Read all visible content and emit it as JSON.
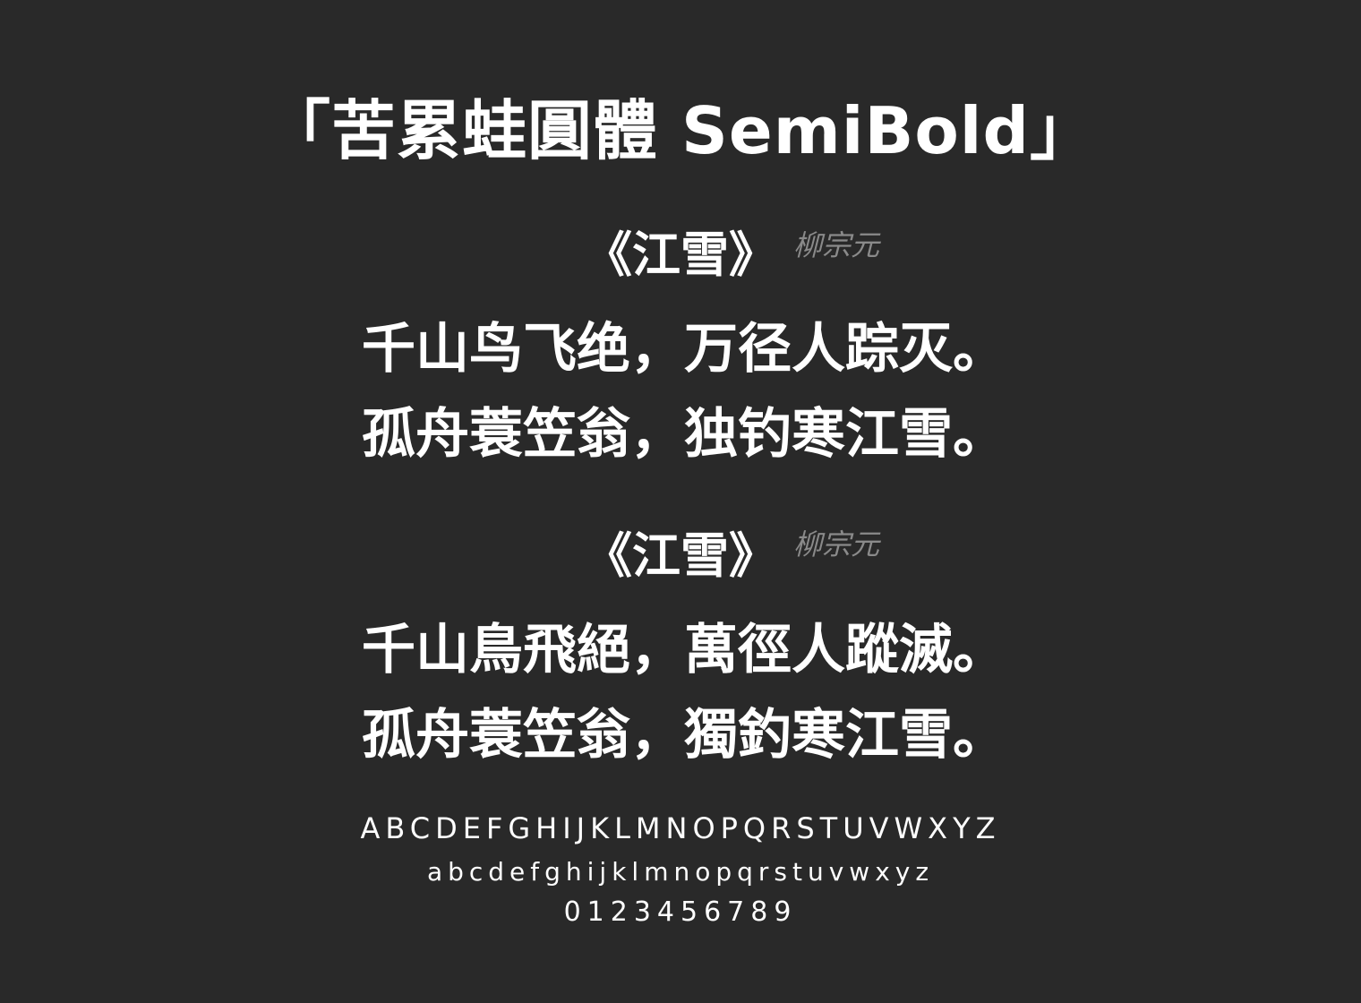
{
  "font_title": "「苦累蛙圓體 SemiBold」",
  "poems": [
    {
      "title": "《江雪》",
      "author": "柳宗元",
      "lines": [
        "千山鸟飞绝，万径人踪灭。",
        "孤舟蓑笠翁，独钓寒江雪。"
      ]
    },
    {
      "title": "《江雪》",
      "author": "柳宗元",
      "lines": [
        "千山鳥飛絕，萬徑人蹤滅。",
        "孤舟蓑笠翁，獨釣寒江雪。"
      ]
    }
  ],
  "glyphs": {
    "uppercase": "ABCDEFGHIJKLMNOPQRSTUVWXYZ",
    "lowercase": "abcdefghijklmnopqrstuvwxyz",
    "digits": "0123456789"
  },
  "colors": {
    "background": "#292929",
    "text": "#ffffff",
    "author": "#8a8a8a"
  }
}
